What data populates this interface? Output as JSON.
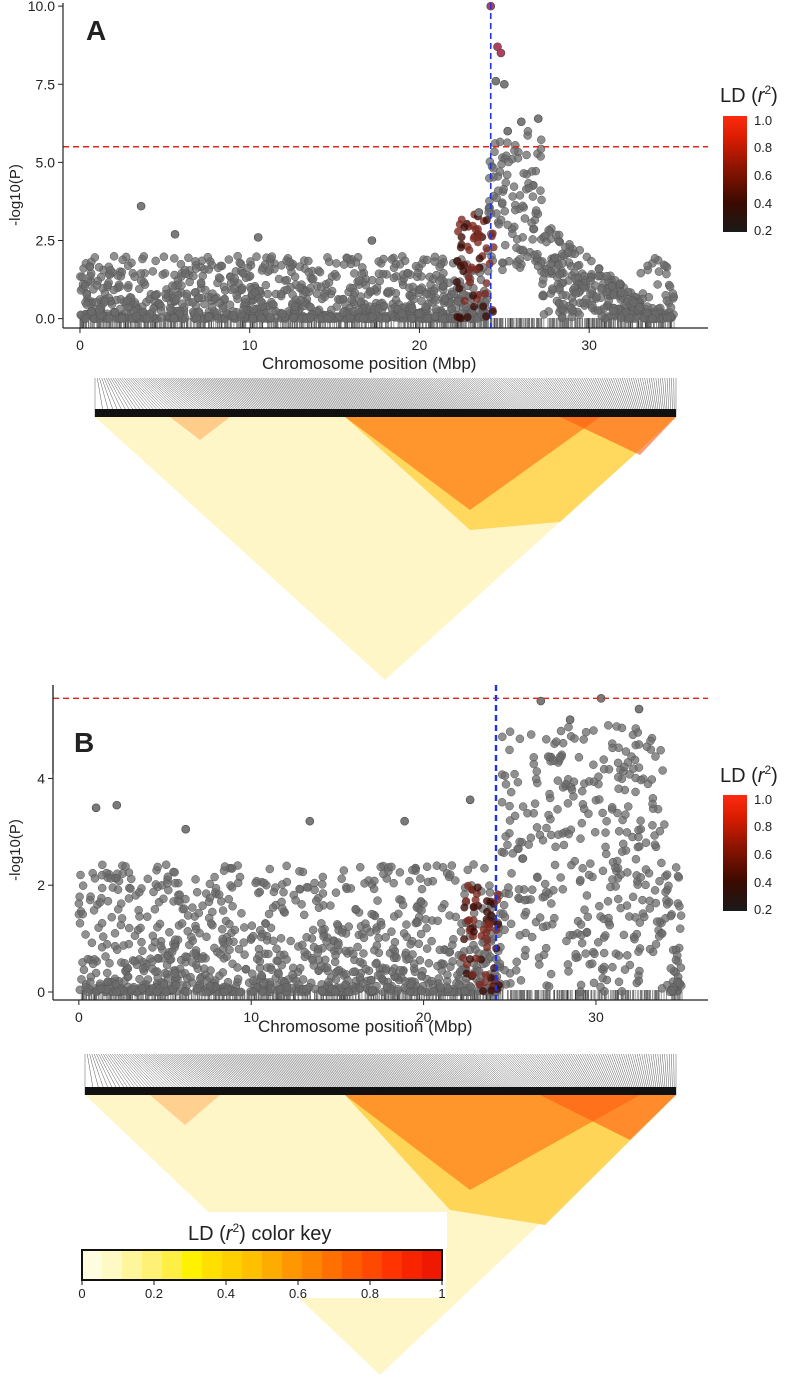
{
  "figure": {
    "panels": [
      {
        "label": "A",
        "xlabel": "Chromosome position (Mbp)",
        "ylabel": "-log10(P)",
        "legend_title_prefix": "LD (",
        "legend_title_var": "r",
        "legend_title_sup": "2",
        "legend_title_suffix": ")",
        "legend_ticks": [
          "1.0",
          "0.8",
          "0.6",
          "0.4",
          "0.2"
        ]
      },
      {
        "label": "B",
        "xlabel": "Chromosome position (Mbp)",
        "ylabel": "-log10(P)",
        "legend_title_prefix": "LD (",
        "legend_title_var": "r",
        "legend_title_sup": "2",
        "legend_title_suffix": ")",
        "legend_ticks": [
          "1.0",
          "0.8",
          "0.6",
          "0.4",
          "0.2"
        ]
      }
    ],
    "color_key": {
      "title_prefix": "LD (",
      "title_var": "r",
      "title_sup": "2",
      "title_suffix": ") color key",
      "ticks": [
        "0",
        "0.2",
        "0.4",
        "0.6",
        "0.8",
        "1"
      ],
      "colors": [
        "#fffde0",
        "#fff9c4",
        "#fff59a",
        "#fff176",
        "#ffee44",
        "#fff200",
        "#ffe000",
        "#ffd000",
        "#ffc000",
        "#ffac00",
        "#ff9800",
        "#ff8400",
        "#ff7000",
        "#ff5c00",
        "#ff4800",
        "#ff3400",
        "#f82400",
        "#ef1800"
      ]
    }
  },
  "chart_data": [
    {
      "type": "scatter",
      "title": "A",
      "xlabel": "Chromosome position (Mbp)",
      "ylabel": "-log10(P)",
      "xlim": [
        -1,
        37
      ],
      "ylim": [
        -0.3,
        10.1
      ],
      "xticks": [
        0,
        10,
        20,
        30
      ],
      "yticks": [
        0.0,
        2.5,
        5.0,
        7.5,
        10.0
      ],
      "ytick_labels": [
        "0.0",
        "2.5",
        "5.0",
        "7.5",
        "10.0"
      ],
      "significance_threshold": 5.5,
      "lead_snp_position": 24.2,
      "highlight_points": [
        {
          "x": 24.2,
          "y": 10.0
        },
        {
          "x": 24.6,
          "y": 8.7
        },
        {
          "x": 24.8,
          "y": 8.5
        },
        {
          "x": 24.5,
          "y": 7.6
        },
        {
          "x": 25.0,
          "y": 7.5
        },
        {
          "x": 25.2,
          "y": 6.0
        },
        {
          "x": 26.0,
          "y": 6.3
        },
        {
          "x": 27.0,
          "y": 6.4
        },
        {
          "x": 3.6,
          "y": 3.6
        },
        {
          "x": 5.6,
          "y": 2.7
        },
        {
          "x": 10.5,
          "y": 2.6
        },
        {
          "x": 17.2,
          "y": 2.5
        },
        {
          "x": 23.5,
          "y": 3.4
        }
      ],
      "colorbar": {
        "label": "LD (r2)",
        "range": [
          0.2,
          1.0
        ]
      }
    },
    {
      "type": "scatter",
      "title": "B",
      "xlabel": "Chromosome position (Mbp)",
      "ylabel": "-log10(P)",
      "xlim": [
        -1.5,
        36.5
      ],
      "ylim": [
        -0.15,
        5.75
      ],
      "xticks": [
        0,
        10,
        20,
        30
      ],
      "yticks": [
        0,
        2,
        4
      ],
      "ytick_labels": [
        "0",
        "2",
        "4"
      ],
      "significance_threshold": 5.5,
      "lead_snp_position": 24.2,
      "highlight_points": [
        {
          "x": 26.8,
          "y": 5.45
        },
        {
          "x": 30.3,
          "y": 5.5
        },
        {
          "x": 28.5,
          "y": 5.1
        },
        {
          "x": 32.5,
          "y": 5.3
        },
        {
          "x": 22.7,
          "y": 3.6
        },
        {
          "x": 2.2,
          "y": 3.5
        },
        {
          "x": 1.0,
          "y": 3.45
        },
        {
          "x": 13.4,
          "y": 3.2
        },
        {
          "x": 18.9,
          "y": 3.2
        },
        {
          "x": 6.2,
          "y": 3.05
        }
      ],
      "colorbar": {
        "label": "LD (r2)",
        "range": [
          0.2,
          1.0
        ]
      }
    }
  ]
}
